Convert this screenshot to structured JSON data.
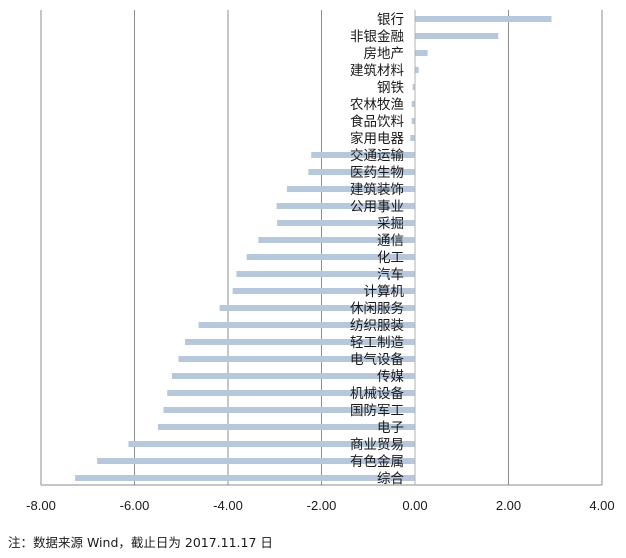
{
  "chart_data": {
    "type": "bar",
    "orientation": "horizontal",
    "categories": [
      "银行",
      "非银金融",
      "房地产",
      "建筑材料",
      "钢铁",
      "农林牧渔",
      "食品饮料",
      "家用电器",
      "交通运输",
      "医药生物",
      "建筑装饰",
      "公用事业",
      "采掘",
      "通信",
      "化工",
      "汽车",
      "计算机",
      "休闲服务",
      "纺织服装",
      "轻工制造",
      "电气设备",
      "传媒",
      "机械设备",
      "国防军工",
      "电子",
      "商业贸易",
      "有色金属",
      "综合"
    ],
    "values": [
      2.92,
      1.78,
      0.27,
      0.08,
      -0.05,
      -0.07,
      -0.07,
      -0.1,
      -2.22,
      -2.28,
      -2.74,
      -2.96,
      -2.95,
      -3.35,
      -3.6,
      -3.82,
      -3.9,
      -4.18,
      -4.63,
      -4.92,
      -5.06,
      -5.2,
      -5.3,
      -5.38,
      -5.5,
      -6.13,
      -6.8,
      -7.27
    ],
    "xlim": [
      -8,
      4
    ],
    "xticks": [
      "-8.00",
      "-6.00",
      "-4.00",
      "-2.00",
      "0.00",
      "2.00",
      "4.00"
    ],
    "xtick_values": [
      -8,
      -6,
      -4,
      -2,
      0,
      2,
      4
    ],
    "grid": "vertical",
    "bar_color": "#b7c7dc",
    "grid_color": "#8c8c8c"
  },
  "note": "注：数据来源 Wind，截止日为 2017.11.17 日"
}
